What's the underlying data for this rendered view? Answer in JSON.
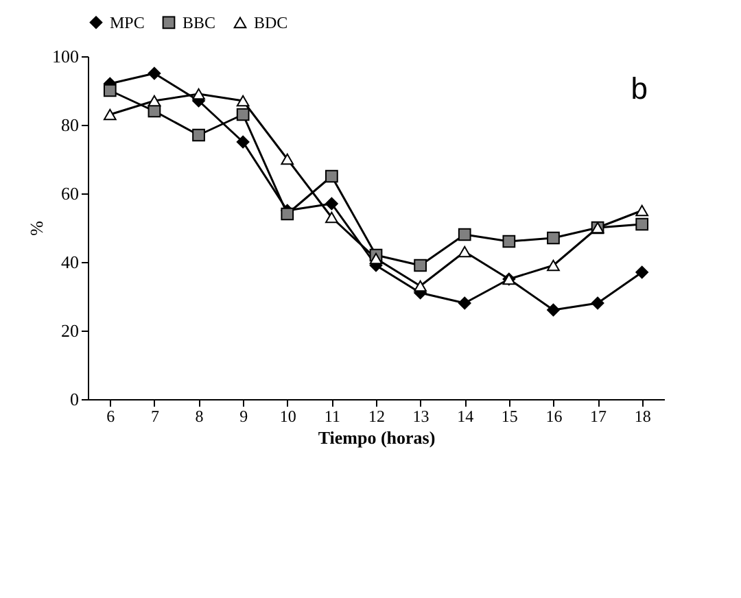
{
  "chart_data": {
    "type": "line",
    "xlabel": "Tiempo (horas)",
    "ylabel": "%",
    "categories": [
      "6",
      "7",
      "8",
      "9",
      "10",
      "11",
      "12",
      "13",
      "14",
      "15",
      "16",
      "17",
      "18"
    ],
    "series": [
      {
        "name": "MPC",
        "color": "#000000",
        "marker": "diamond",
        "values": [
          92,
          95,
          87,
          75,
          55,
          57,
          39,
          31,
          28,
          35,
          26,
          28,
          37
        ]
      },
      {
        "name": "BBC",
        "color": "#000000",
        "marker": "square",
        "values": [
          90,
          84,
          77,
          83,
          54,
          65,
          42,
          39,
          48,
          46,
          47,
          50,
          51
        ]
      },
      {
        "name": "BDC",
        "color": "#000000",
        "marker": "triangle",
        "values": [
          83,
          87,
          89,
          87,
          70,
          53,
          41,
          33,
          43,
          35,
          39,
          50,
          55
        ]
      }
    ],
    "ylim": [
      0,
      100
    ],
    "yticks": [
      0,
      20,
      40,
      60,
      80,
      100
    ],
    "grid": false,
    "legend": "top",
    "line_style": "solid",
    "annotations": [
      "b"
    ]
  }
}
